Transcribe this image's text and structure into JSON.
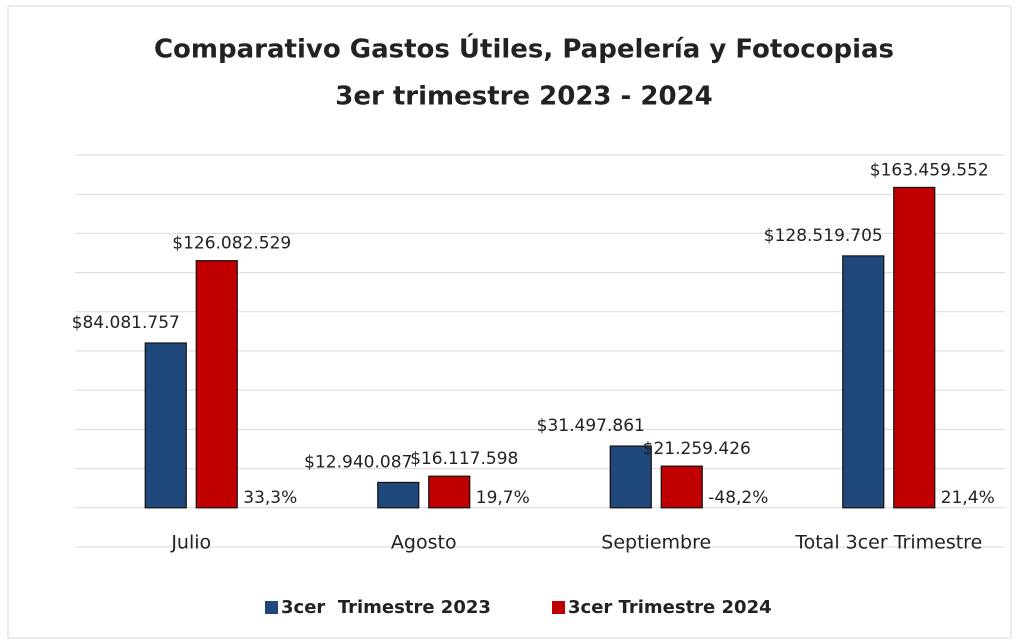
{
  "chart_data": {
    "type": "bar",
    "title": "Comparativo Gastos Útiles, Papelería y Fotocopias",
    "subtitle": "3er trimestre 2023 - 2024",
    "categories": [
      "Julio",
      "Agosto",
      "Septiembre",
      "Total 3cer Trimestre"
    ],
    "series": [
      {
        "name": "3cer  Trimestre 2023",
        "color": "#1f497d",
        "values": [
          84081757,
          12940087,
          31497861,
          128519705
        ],
        "value_labels": [
          "$84.081.757",
          "$12.940.087",
          "$31.497.861",
          "$128.519.705"
        ]
      },
      {
        "name": "3cer Trimestre 2024",
        "color": "#c00000",
        "values": [
          126082529,
          16117598,
          21259426,
          163459552
        ],
        "value_labels": [
          "$126.082.529",
          "$16.117.598",
          "$21.259.426",
          "$163.459.552"
        ]
      }
    ],
    "change_labels": [
      "33,3%",
      "19,7%",
      "-48,2%",
      "21,4%"
    ],
    "ylim": [
      -20000000,
      180000000
    ],
    "yticks": [
      -20000000,
      0,
      20000000,
      40000000,
      60000000,
      80000000,
      100000000,
      120000000,
      140000000,
      160000000,
      180000000
    ],
    "grid": true,
    "legend": "bottom"
  }
}
